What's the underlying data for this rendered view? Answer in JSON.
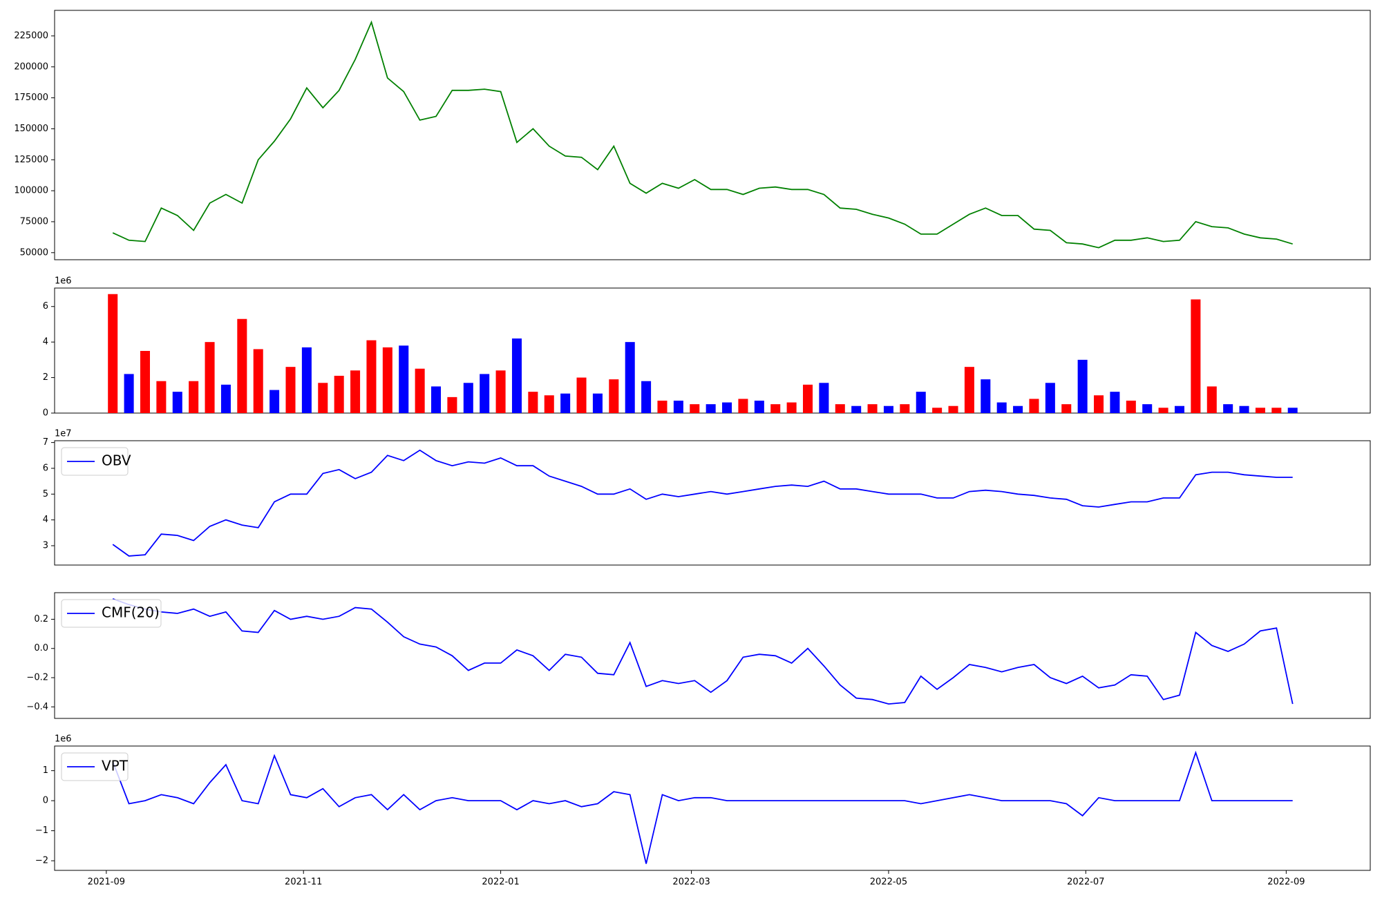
{
  "chart_data": [
    {
      "type": "line",
      "x": [
        18873,
        18878,
        18883,
        18888,
        18893,
        18898,
        18903,
        18908,
        18913,
        18918,
        18923,
        18928,
        18933,
        18938,
        18943,
        18948,
        18953,
        18958,
        18963,
        18968,
        18973,
        18978,
        18983,
        18988,
        18993,
        18998,
        19003,
        19008,
        19013,
        19018,
        19023,
        19028,
        19033,
        19038,
        19043,
        19048,
        19053,
        19058,
        19063,
        19068,
        19073,
        19078,
        19083,
        19088,
        19093,
        19098,
        19103,
        19108,
        19113,
        19118,
        19123,
        19128,
        19133,
        19138,
        19143,
        19148,
        19153,
        19158,
        19163,
        19168,
        19173,
        19178,
        19183,
        19188,
        19193,
        19198,
        19203,
        19208,
        19213,
        19218,
        19223,
        19228,
        19233,
        19238
      ],
      "values": [
        66000,
        60000,
        59000,
        86000,
        80000,
        68000,
        90000,
        97000,
        90000,
        125000,
        140000,
        158000,
        183000,
        167000,
        181000,
        206000,
        236000,
        191000,
        180000,
        157000,
        160000,
        181000,
        181000,
        182000,
        180000,
        139000,
        150000,
        136000,
        128000,
        127000,
        117000,
        136000,
        106000,
        98000,
        106000,
        102000,
        109000,
        101000,
        101000,
        97000,
        102000,
        103000,
        101000,
        101000,
        97000,
        86000,
        85000,
        81000,
        78000,
        73000,
        65000,
        65000,
        73000,
        81000,
        86000,
        80000,
        80000,
        69000,
        68000,
        58000,
        57000,
        54000,
        60000,
        60000,
        62000,
        59000,
        60000,
        75000,
        71000,
        70000,
        65000,
        62000,
        61000,
        57000
      ],
      "color": "#008000",
      "xlim": [
        18855,
        19262
      ],
      "ylim": [
        44300,
        245600
      ],
      "yticks": [
        50000,
        75000,
        100000,
        125000,
        150000,
        175000,
        200000,
        225000
      ]
    },
    {
      "type": "bar",
      "x": [
        18873,
        18878,
        18883,
        18888,
        18893,
        18898,
        18903,
        18908,
        18913,
        18918,
        18923,
        18928,
        18933,
        18938,
        18943,
        18948,
        18953,
        18958,
        18963,
        18968,
        18973,
        18978,
        18983,
        18988,
        18993,
        18998,
        19003,
        19008,
        19013,
        19018,
        19023,
        19028,
        19033,
        19038,
        19043,
        19048,
        19053,
        19058,
        19063,
        19068,
        19073,
        19078,
        19083,
        19088,
        19093,
        19098,
        19103,
        19108,
        19113,
        19118,
        19123,
        19128,
        19133,
        19138,
        19143,
        19148,
        19153,
        19158,
        19163,
        19168,
        19173,
        19178,
        19183,
        19188,
        19193,
        19198,
        19203,
        19208,
        19213,
        19218,
        19223,
        19228,
        19233,
        19238
      ],
      "values": [
        6.7,
        2.2,
        3.5,
        1.8,
        1.2,
        1.8,
        4.0,
        1.6,
        5.3,
        3.6,
        1.3,
        2.6,
        3.7,
        1.7,
        2.1,
        2.4,
        4.1,
        3.7,
        3.8,
        2.5,
        1.5,
        0.9,
        1.7,
        2.2,
        2.4,
        4.2,
        1.2,
        1.0,
        1.1,
        2.0,
        1.1,
        1.9,
        4.0,
        1.8,
        0.7,
        0.7,
        0.5,
        0.5,
        0.6,
        0.8,
        0.7,
        0.5,
        0.6,
        1.6,
        1.7,
        0.5,
        0.4,
        0.5,
        0.4,
        0.5,
        1.2,
        0.3,
        0.4,
        2.6,
        1.9,
        0.6,
        0.4,
        0.8,
        1.7,
        0.5,
        3.0,
        1.0,
        1.2,
        0.7,
        0.5,
        0.3,
        0.4,
        6.4,
        1.5,
        0.5,
        0.4,
        0.3,
        0.3,
        0.3
      ],
      "colors": [
        "#ff0000",
        "#0000ff",
        "#ff0000",
        "#ff0000",
        "#0000ff",
        "#ff0000",
        "#ff0000",
        "#0000ff",
        "#ff0000",
        "#ff0000",
        "#0000ff",
        "#ff0000",
        "#0000ff",
        "#ff0000",
        "#ff0000",
        "#ff0000",
        "#ff0000",
        "#ff0000",
        "#0000ff",
        "#ff0000",
        "#0000ff",
        "#ff0000",
        "#0000ff",
        "#0000ff",
        "#ff0000",
        "#0000ff",
        "#ff0000",
        "#ff0000",
        "#0000ff",
        "#ff0000",
        "#0000ff",
        "#ff0000",
        "#0000ff",
        "#0000ff",
        "#ff0000",
        "#0000ff",
        "#ff0000",
        "#0000ff",
        "#0000ff",
        "#ff0000",
        "#0000ff",
        "#ff0000",
        "#ff0000",
        "#ff0000",
        "#0000ff",
        "#ff0000",
        "#0000ff",
        "#ff0000",
        "#0000ff",
        "#ff0000",
        "#0000ff",
        "#ff0000",
        "#ff0000",
        "#ff0000",
        "#0000ff",
        "#0000ff",
        "#0000ff",
        "#ff0000",
        "#0000ff",
        "#ff0000",
        "#0000ff",
        "#ff0000",
        "#0000ff",
        "#ff0000",
        "#0000ff",
        "#ff0000",
        "#0000ff",
        "#ff0000",
        "#ff0000",
        "#0000ff",
        "#0000ff",
        "#ff0000",
        "#ff0000",
        "#0000ff"
      ],
      "offset_label": "1e6",
      "xlim": [
        18855,
        19262
      ],
      "ylim": [
        0,
        7.04
      ],
      "yticks": [
        0,
        2,
        4,
        6
      ]
    },
    {
      "type": "line",
      "x": [
        18873,
        18878,
        18883,
        18888,
        18893,
        18898,
        18903,
        18908,
        18913,
        18918,
        18923,
        18928,
        18933,
        18938,
        18943,
        18948,
        18953,
        18958,
        18963,
        18968,
        18973,
        18978,
        18983,
        18988,
        18993,
        18998,
        19003,
        19008,
        19013,
        19018,
        19023,
        19028,
        19033,
        19038,
        19043,
        19048,
        19053,
        19058,
        19063,
        19068,
        19073,
        19078,
        19083,
        19088,
        19093,
        19098,
        19103,
        19108,
        19113,
        19118,
        19123,
        19128,
        19133,
        19138,
        19143,
        19148,
        19153,
        19158,
        19163,
        19168,
        19173,
        19178,
        19183,
        19188,
        19193,
        19198,
        19203,
        19208,
        19213,
        19218,
        19223,
        19228,
        19233,
        19238
      ],
      "series": [
        {
          "name": "OBV",
          "color": "#0000ff",
          "values": [
            3.05,
            2.6,
            2.65,
            3.45,
            3.4,
            3.2,
            3.75,
            4.0,
            3.8,
            3.7,
            4.7,
            5.0,
            5.0,
            5.8,
            5.95,
            5.6,
            5.85,
            6.5,
            6.3,
            6.7,
            6.3,
            6.1,
            6.25,
            6.2,
            6.4,
            6.1,
            6.1,
            5.7,
            5.5,
            5.3,
            5.0,
            5.0,
            5.2,
            4.8,
            5.0,
            4.9,
            5.0,
            5.1,
            5.0,
            5.1,
            5.2,
            5.3,
            5.35,
            5.3,
            5.5,
            5.2,
            5.2,
            5.1,
            5.0,
            5.0,
            5.0,
            4.85,
            4.85,
            5.1,
            5.15,
            5.1,
            5.0,
            4.95,
            4.85,
            4.8,
            4.55,
            4.5,
            4.6,
            4.7,
            4.7,
            4.85,
            4.85,
            5.75,
            5.85,
            5.85,
            5.75,
            5.7,
            5.65,
            5.65
          ]
        }
      ],
      "offset_label": "1e7",
      "legend": "upper left",
      "xlim": [
        18855,
        19262
      ],
      "ylim": [
        2.25,
        7.07
      ],
      "yticks": [
        3,
        4,
        5,
        6,
        7
      ]
    },
    {
      "type": "line",
      "x": [
        18873,
        18878,
        18883,
        18888,
        18893,
        18898,
        18903,
        18908,
        18913,
        18918,
        18923,
        18928,
        18933,
        18938,
        18943,
        18948,
        18953,
        18958,
        18963,
        18968,
        18973,
        18978,
        18983,
        18988,
        18993,
        18998,
        19003,
        19008,
        19013,
        19018,
        19023,
        19028,
        19033,
        19038,
        19043,
        19048,
        19053,
        19058,
        19063,
        19068,
        19073,
        19078,
        19083,
        19088,
        19093,
        19098,
        19103,
        19108,
        19113,
        19118,
        19123,
        19128,
        19133,
        19138,
        19143,
        19148,
        19153,
        19158,
        19163,
        19168,
        19173,
        19178,
        19183,
        19188,
        19193,
        19198,
        19203,
        19208,
        19213,
        19218,
        19223,
        19228,
        19233,
        19238
      ],
      "series": [
        {
          "name": "CMF(20)",
          "color": "#0000ff",
          "values": [
            0.34,
            0.3,
            0.27,
            0.25,
            0.24,
            0.27,
            0.22,
            0.25,
            0.12,
            0.11,
            0.26,
            0.2,
            0.22,
            0.2,
            0.22,
            0.28,
            0.27,
            0.18,
            0.08,
            0.03,
            0.01,
            -0.05,
            -0.15,
            -0.1,
            -0.1,
            -0.01,
            -0.05,
            -0.15,
            -0.04,
            -0.06,
            -0.17,
            -0.18,
            0.04,
            -0.26,
            -0.22,
            -0.24,
            -0.22,
            -0.3,
            -0.22,
            -0.06,
            -0.04,
            -0.05,
            -0.1,
            0.0,
            -0.12,
            -0.25,
            -0.34,
            -0.35,
            -0.38,
            -0.37,
            -0.19,
            -0.28,
            -0.2,
            -0.11,
            -0.13,
            -0.16,
            -0.13,
            -0.11,
            -0.2,
            -0.24,
            -0.19,
            -0.27,
            -0.25,
            -0.18,
            -0.19,
            -0.35,
            -0.32,
            0.11,
            0.02,
            -0.02,
            0.03,
            0.12,
            0.14,
            -0.38
          ]
        }
      ],
      "legend": "upper left",
      "xlim": [
        18855,
        19262
      ],
      "ylim": [
        -0.479,
        0.382
      ],
      "yticks": [
        {
          "value": -0.4,
          "label": "−0.4"
        },
        {
          "value": -0.2,
          "label": "−0.2"
        },
        {
          "value": 0,
          "label": "0.0"
        },
        0.2
      ]
    },
    {
      "type": "line",
      "x": [
        18873,
        18878,
        18883,
        18888,
        18893,
        18898,
        18903,
        18908,
        18913,
        18918,
        18923,
        18928,
        18933,
        18938,
        18943,
        18948,
        18953,
        18958,
        18963,
        18968,
        18973,
        18978,
        18983,
        18988,
        18993,
        18998,
        19003,
        19008,
        19013,
        19018,
        19023,
        19028,
        19033,
        19038,
        19043,
        19048,
        19053,
        19058,
        19063,
        19068,
        19073,
        19078,
        19083,
        19088,
        19093,
        19098,
        19103,
        19108,
        19113,
        19118,
        19123,
        19128,
        19133,
        19138,
        19143,
        19148,
        19153,
        19158,
        19163,
        19168,
        19173,
        19178,
        19183,
        19188,
        19193,
        19198,
        19203,
        19208,
        19213,
        19218,
        19223,
        19228,
        19233,
        19238
      ],
      "series": [
        {
          "name": "VPT",
          "color": "#0000ff",
          "values": [
            1.3,
            -0.1,
            0.0,
            0.2,
            0.1,
            -0.1,
            0.6,
            1.2,
            0.0,
            -0.1,
            1.5,
            0.2,
            0.1,
            0.4,
            -0.2,
            0.1,
            0.2,
            -0.3,
            0.2,
            -0.3,
            0.0,
            0.1,
            0.0,
            0.0,
            0.0,
            -0.3,
            0.0,
            -0.1,
            0.0,
            -0.2,
            -0.1,
            0.3,
            0.2,
            -2.1,
            0.2,
            0.0,
            0.1,
            0.1,
            0.0,
            0.0,
            0.0,
            0.0,
            0.0,
            0.0,
            0.0,
            0.0,
            0.0,
            0.0,
            0.0,
            0.0,
            -0.1,
            0.0,
            0.1,
            0.2,
            0.1,
            0.0,
            0.0,
            0.0,
            0.0,
            -0.1,
            -0.5,
            0.1,
            0.0,
            0.0,
            0.0,
            0.0,
            0.0,
            1.6,
            0.0,
            0.0,
            0.0,
            0.0,
            0.0,
            0.0
          ]
        }
      ],
      "offset_label": "1e6",
      "legend": "upper left",
      "xlim": [
        18855,
        19262
      ],
      "ylim": [
        -2.32,
        1.82
      ],
      "yticks": [
        {
          "value": -2,
          "label": "−2"
        },
        {
          "value": -1,
          "label": "−1"
        },
        0,
        1
      ],
      "xticks": [
        {
          "value": 18871,
          "label": "2021-09"
        },
        {
          "value": 18932,
          "label": "2021-11"
        },
        {
          "value": 18993,
          "label": "2022-01"
        },
        {
          "value": 19052,
          "label": "2022-03"
        },
        {
          "value": 19113,
          "label": "2022-05"
        },
        {
          "value": 19174,
          "label": "2022-07"
        },
        {
          "value": 19236,
          "label": "2022-09"
        }
      ]
    }
  ]
}
